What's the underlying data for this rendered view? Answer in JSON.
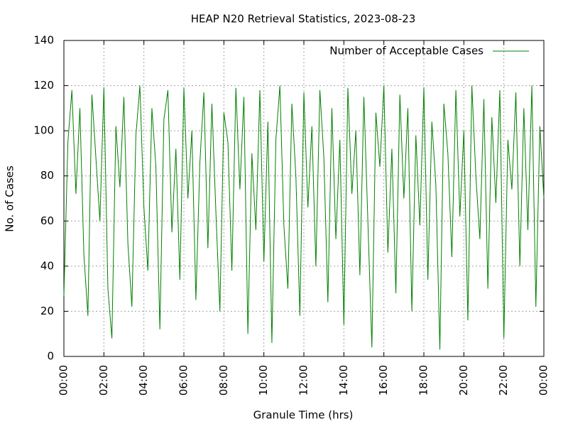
{
  "chart_data": {
    "type": "line",
    "title": "HEAP N20 Retrieval Statistics, 2023-08-23",
    "x_label": "Granule Time (hrs)",
    "y_label": "No. of Cases",
    "x": [
      0,
      0.2,
      0.4,
      0.6,
      0.8,
      1,
      1.2,
      1.4,
      1.6,
      1.8,
      2,
      2.2,
      2.4,
      2.6,
      2.8,
      3,
      3.2,
      3.4,
      3.6,
      3.8,
      4,
      4.2,
      4.4,
      4.6,
      4.8,
      5,
      5.2,
      5.4,
      5.6,
      5.8,
      6,
      6.2,
      6.4,
      6.6,
      6.8,
      7,
      7.2,
      7.4,
      7.6,
      7.8,
      8,
      8.2,
      8.4,
      8.6,
      8.8,
      9,
      9.2,
      9.4,
      9.6,
      9.8,
      10,
      10.2,
      10.4,
      10.6,
      10.8,
      11,
      11.2,
      11.4,
      11.6,
      11.8,
      12,
      12.2,
      12.4,
      12.6,
      12.8,
      13,
      13.2,
      13.4,
      13.6,
      13.8,
      14,
      14.2,
      14.4,
      14.6,
      14.8,
      15,
      15.2,
      15.4,
      15.6,
      15.8,
      16,
      16.2,
      16.4,
      16.6,
      16.8,
      17,
      17.2,
      17.4,
      17.6,
      17.8,
      18,
      18.2,
      18.4,
      18.6,
      18.8,
      19,
      19.2,
      19.4,
      19.6,
      19.8,
      20,
      20.2,
      20.4,
      20.6,
      20.8,
      21,
      21.2,
      21.4,
      21.6,
      21.8,
      22,
      22.2,
      22.4,
      22.6,
      22.8,
      23,
      23.2,
      23.4,
      23.6,
      23.8,
      24
    ],
    "series": [
      {
        "name": "Number of Acceptable Cases",
        "color": "#008000",
        "values": [
          27,
          95,
          118,
          72,
          110,
          45,
          18,
          116,
          88,
          60,
          119,
          30,
          8,
          102,
          75,
          115,
          50,
          22,
          98,
          120,
          66,
          38,
          110,
          84,
          12,
          105,
          118,
          55,
          92,
          34,
          119,
          70,
          100,
          25,
          86,
          117,
          48,
          112,
          64,
          20,
          108,
          95,
          38,
          119,
          74,
          115,
          10,
          90,
          56,
          118,
          42,
          104,
          6,
          96,
          120,
          58,
          30,
          112,
          80,
          18,
          117,
          66,
          102,
          40,
          118,
          88,
          24,
          110,
          52,
          96,
          14,
          119,
          72,
          100,
          36,
          115,
          60,
          4,
          108,
          84,
          120,
          46,
          92,
          28,
          116,
          70,
          110,
          20,
          98,
          58,
          119,
          34,
          104,
          76,
          3,
          112,
          90,
          44,
          118,
          62,
          100,
          16,
          120,
          80,
          52,
          114,
          30,
          106,
          68,
          118,
          8,
          96,
          74,
          117,
          40,
          110,
          56,
          120,
          22,
          102,
          70
        ]
      }
    ],
    "xlim": [
      0,
      24
    ],
    "xticks": [
      {
        "value": 0,
        "label": "00:00"
      },
      {
        "value": 2,
        "label": "02:00"
      },
      {
        "value": 4,
        "label": "04:00"
      },
      {
        "value": 6,
        "label": "06:00"
      },
      {
        "value": 8,
        "label": "08:00"
      },
      {
        "value": 10,
        "label": "10:00"
      },
      {
        "value": 12,
        "label": "12:00"
      },
      {
        "value": 14,
        "label": "14:00"
      },
      {
        "value": 16,
        "label": "16:00"
      },
      {
        "value": 18,
        "label": "18:00"
      },
      {
        "value": 20,
        "label": "20:00"
      },
      {
        "value": 22,
        "label": "22:00"
      },
      {
        "value": 24,
        "label": "00:00"
      }
    ],
    "ylim": [
      0,
      140
    ],
    "yticks": [
      0,
      20,
      40,
      60,
      80,
      100,
      120,
      140
    ],
    "grid": true,
    "legend": "top-right"
  }
}
